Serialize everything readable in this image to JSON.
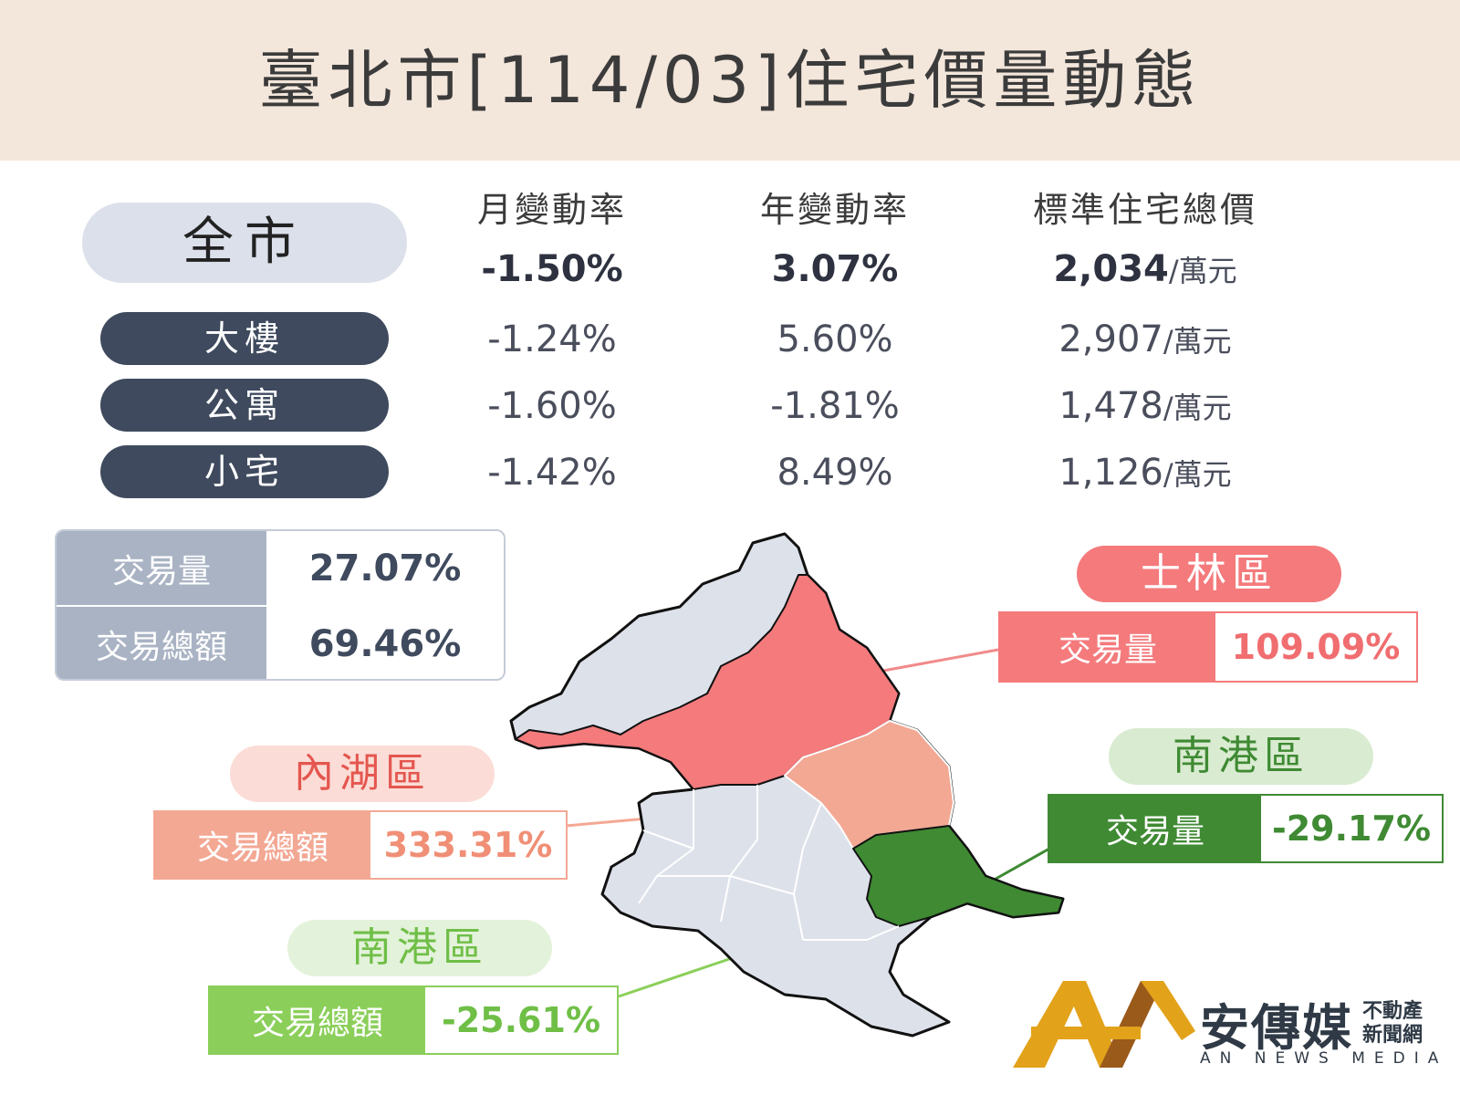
{
  "header": {
    "title": "臺北市[114/03]住宅價量動態"
  },
  "columns": [
    "月變動率",
    "年變動率",
    "標準住宅總價"
  ],
  "city": {
    "label": "全市",
    "monthly": "-1.50%",
    "yearly": "3.07%",
    "price": "2,034",
    "unit": "/萬元"
  },
  "types": [
    {
      "label": "大樓",
      "monthly": "-1.24%",
      "yearly": "5.60%",
      "price": "2,907",
      "unit": "/萬元"
    },
    {
      "label": "公寓",
      "monthly": "-1.60%",
      "yearly": "-1.81%",
      "price": "1,478",
      "unit": "/萬元"
    },
    {
      "label": "小宅",
      "monthly": "-1.42%",
      "yearly": "8.49%",
      "price": "1,126",
      "unit": "/萬元"
    }
  ],
  "summary": [
    {
      "label": "交易量",
      "value": "27.07%"
    },
    {
      "label": "交易總額",
      "value": "69.46%"
    }
  ],
  "callouts": {
    "shilin": {
      "district": "士林區",
      "label": "交易量",
      "value": "109.09%"
    },
    "neihu": {
      "district": "內湖區",
      "label": "交易總額",
      "value": "333.31%"
    },
    "nangang_volume": {
      "district": "南港區",
      "label": "交易量",
      "value": "-29.17%"
    },
    "nangang_amount": {
      "district": "南港區",
      "label": "交易總額",
      "value": "-25.61%"
    }
  },
  "colors": {
    "header_bg": "#f3e6db",
    "pill_dark": "#3f4a5e",
    "summary_gray": "#a9b3c4",
    "shilin_red": "#f47a7c",
    "neihu_salmon": "#f3a894",
    "nangang_dark_green": "#3f8a33",
    "nangang_light_green": "#8bcf5a",
    "map_gray": "#dde1ea",
    "logo_gold": "#e2a21a",
    "logo_dark": "#2f3a46"
  },
  "logo": {
    "name": "安傳媒",
    "tag_line1": "不動產",
    "tag_line2": "新聞網",
    "english": "AN NEWS MEDIA"
  }
}
